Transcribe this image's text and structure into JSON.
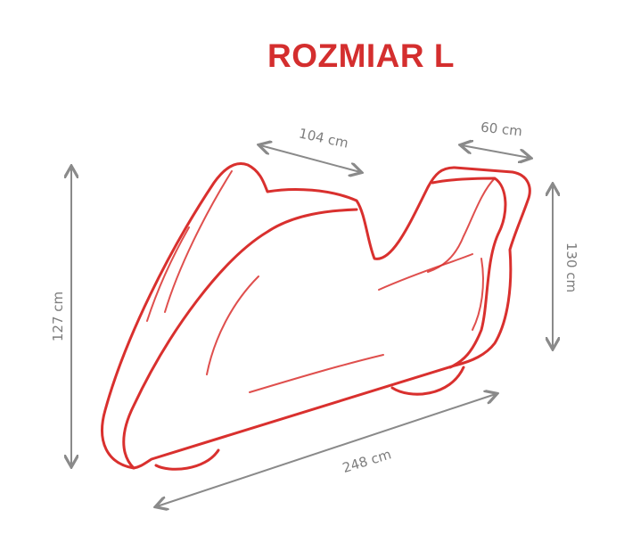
{
  "title": "ROZMIAR L",
  "dimensions": {
    "height_front": "127 cm",
    "height_rear": "130 cm",
    "length": "248 cm",
    "front_top": "104 cm",
    "rear_top": "60 cm"
  },
  "colors": {
    "accent": "#d42e2e",
    "dimension": "#7d7d7d"
  }
}
